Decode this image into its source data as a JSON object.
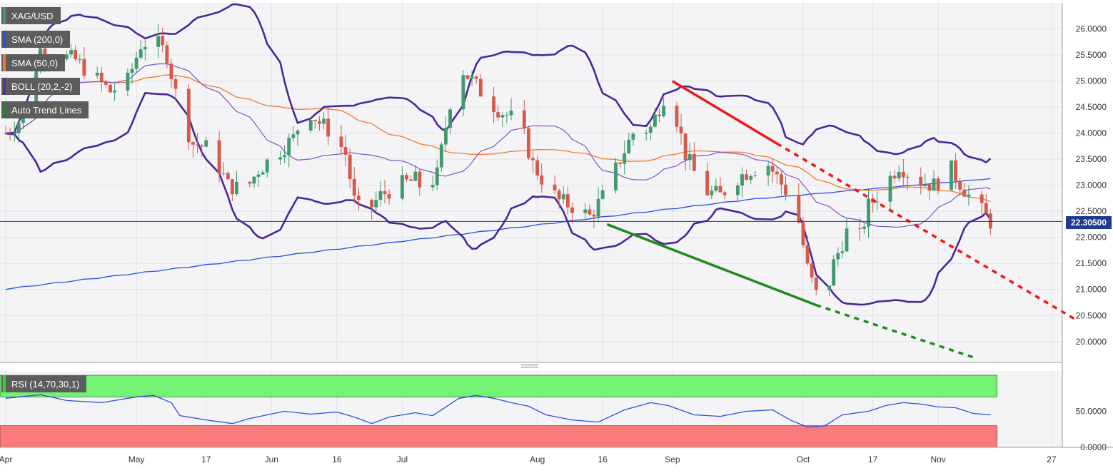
{
  "chart_data": {
    "type": "candlestick",
    "symbol": "XAG/USD",
    "legend": [
      {
        "label": "XAG/USD",
        "color": "#3e9b6f"
      },
      {
        "label": "SMA (200,0)",
        "color": "#2b4fe0"
      },
      {
        "label": "SMA (50,0)",
        "color": "#f07b27"
      },
      {
        "label": "BOLL (20,2,-2)",
        "color": "#5a2ea6"
      },
      {
        "label": "Auto Trend Lines",
        "color": "#1c8c1c"
      }
    ],
    "current_price": "22.30500",
    "price_axis": {
      "ylim": [
        19.6,
        26.5
      ],
      "ticks": [
        "26.0000",
        "25.5000",
        "25.0000",
        "24.5000",
        "24.0000",
        "23.5000",
        "23.0000",
        "22.5000",
        "22.0000",
        "21.5000",
        "21.0000",
        "20.5000",
        "20.0000"
      ]
    },
    "x_axis": {
      "ticks": [
        {
          "label": "Apr",
          "day": 0
        },
        {
          "label": "May",
          "day": 30
        },
        {
          "label": "17",
          "day": 46
        },
        {
          "label": "Jun",
          "day": 61
        },
        {
          "label": "16",
          "day": 76
        },
        {
          "label": "Jul",
          "day": 91
        },
        {
          "label": "Aug",
          "day": 122
        },
        {
          "label": "16",
          "day": 137
        },
        {
          "label": "Sep",
          "day": 153
        },
        {
          "label": "Oct",
          "day": 183
        },
        {
          "label": "17",
          "day": 199
        },
        {
          "label": "Nov",
          "day": 214
        },
        {
          "label": "27",
          "day": 240
        }
      ]
    },
    "rsi": {
      "label": "RSI (14,70,30,1)",
      "overbought": 70,
      "oversold": 30,
      "ticks": [
        "50.0000",
        "0.0000"
      ],
      "values": [
        {
          "day": 0,
          "value": 68
        },
        {
          "day": 8,
          "value": 73
        },
        {
          "day": 14,
          "value": 65
        },
        {
          "day": 22,
          "value": 62
        },
        {
          "day": 30,
          "value": 70
        },
        {
          "day": 34,
          "value": 72
        },
        {
          "day": 38,
          "value": 62
        },
        {
          "day": 40,
          "value": 44
        },
        {
          "day": 46,
          "value": 38
        },
        {
          "day": 52,
          "value": 33
        },
        {
          "day": 56,
          "value": 40
        },
        {
          "day": 60,
          "value": 45
        },
        {
          "day": 64,
          "value": 50
        },
        {
          "day": 70,
          "value": 46
        },
        {
          "day": 76,
          "value": 49
        },
        {
          "day": 80,
          "value": 42
        },
        {
          "day": 84,
          "value": 33
        },
        {
          "day": 88,
          "value": 42
        },
        {
          "day": 94,
          "value": 48
        },
        {
          "day": 98,
          "value": 44
        },
        {
          "day": 104,
          "value": 68
        },
        {
          "day": 108,
          "value": 72
        },
        {
          "day": 112,
          "value": 68
        },
        {
          "day": 116,
          "value": 62
        },
        {
          "day": 120,
          "value": 57
        },
        {
          "day": 124,
          "value": 45
        },
        {
          "day": 130,
          "value": 38
        },
        {
          "day": 136,
          "value": 35
        },
        {
          "day": 142,
          "value": 52
        },
        {
          "day": 148,
          "value": 62
        },
        {
          "day": 152,
          "value": 58
        },
        {
          "day": 158,
          "value": 45
        },
        {
          "day": 164,
          "value": 43
        },
        {
          "day": 170,
          "value": 50
        },
        {
          "day": 176,
          "value": 52
        },
        {
          "day": 180,
          "value": 38
        },
        {
          "day": 184,
          "value": 28
        },
        {
          "day": 188,
          "value": 30
        },
        {
          "day": 192,
          "value": 45
        },
        {
          "day": 198,
          "value": 50
        },
        {
          "day": 202,
          "value": 58
        },
        {
          "day": 206,
          "value": 62
        },
        {
          "day": 210,
          "value": 60
        },
        {
          "day": 214,
          "value": 56
        },
        {
          "day": 218,
          "value": 55
        },
        {
          "day": 222,
          "value": 47
        },
        {
          "day": 226,
          "value": 45
        }
      ]
    },
    "trend_lines": [
      {
        "name": "resistance",
        "color": "#f01818",
        "from": {
          "day": 153,
          "price": 25.0
        },
        "to": {
          "day": 177,
          "price": 23.8
        },
        "extension_to": {
          "day": 246,
          "price": 20.4
        }
      },
      {
        "name": "support",
        "color": "#1c8c1c",
        "from": {
          "day": 138,
          "price": 22.25
        },
        "to": {
          "day": 186,
          "price": 20.7
        },
        "extension_to": {
          "day": 222,
          "price": 19.7
        }
      }
    ]
  }
}
